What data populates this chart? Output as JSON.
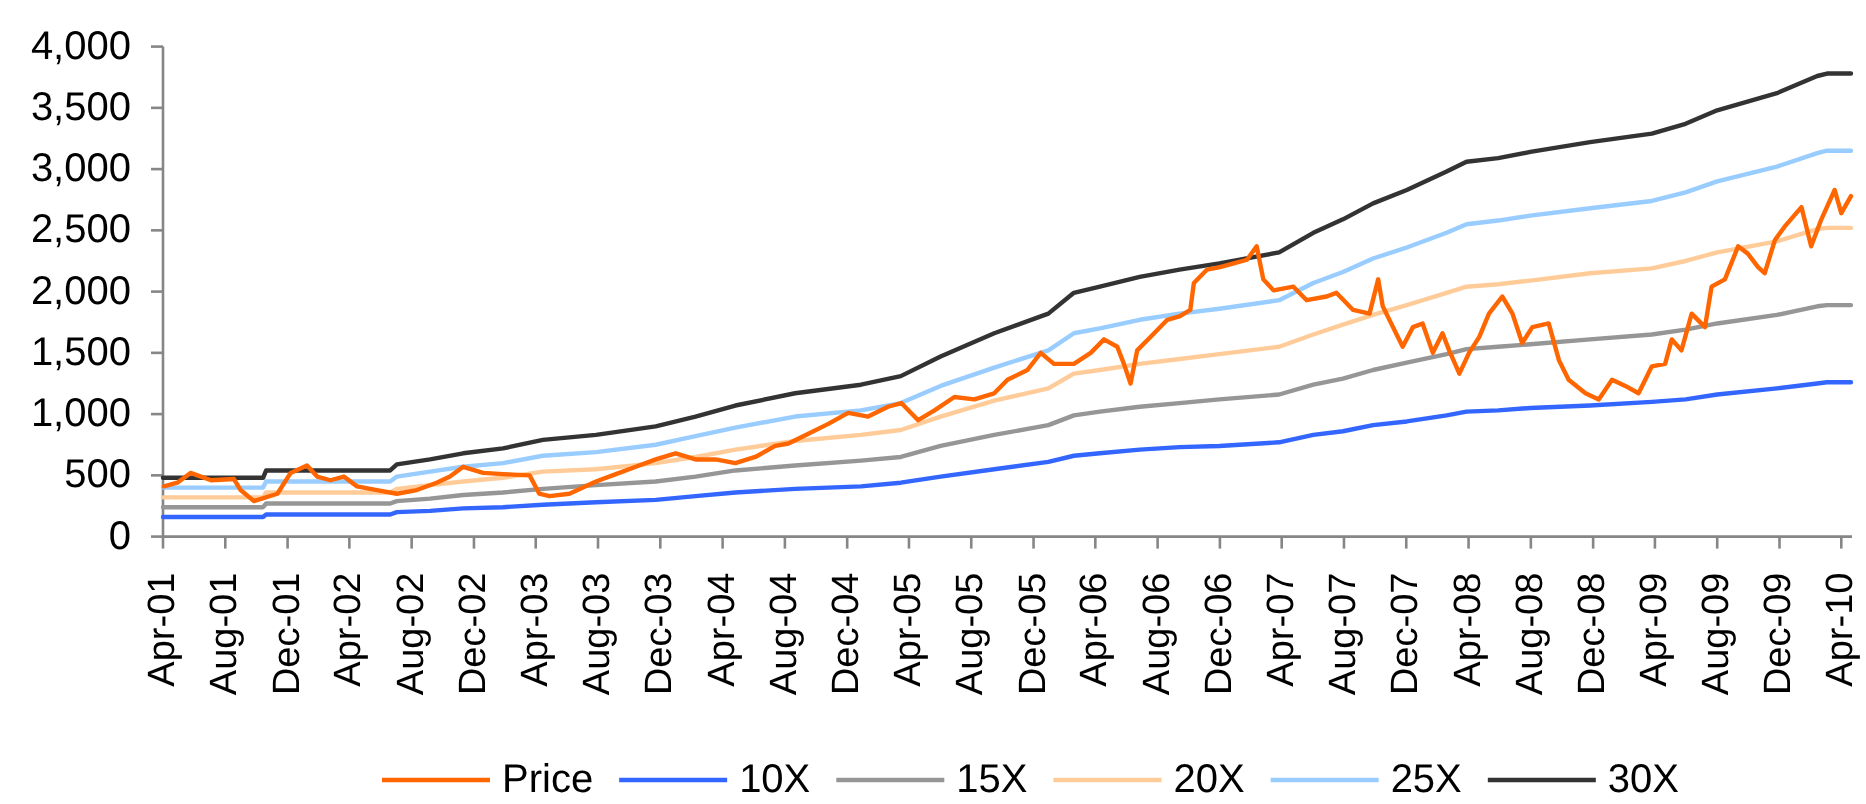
{
  "chart_data": {
    "type": "line",
    "xlim": [
      "2001-04-01",
      "2010-04-22"
    ],
    "ylim": [
      0,
      4000
    ],
    "xticks": [
      {
        "value": "2001-04-01",
        "label": "Apr-01"
      },
      {
        "value": "2001-08-01",
        "label": "Aug-01"
      },
      {
        "value": "2001-12-01",
        "label": "Dec-01"
      },
      {
        "value": "2002-04-01",
        "label": "Apr-02"
      },
      {
        "value": "2002-08-01",
        "label": "Aug-02"
      },
      {
        "value": "2002-12-01",
        "label": "Dec-02"
      },
      {
        "value": "2003-04-01",
        "label": "Apr-03"
      },
      {
        "value": "2003-08-01",
        "label": "Aug-03"
      },
      {
        "value": "2003-12-01",
        "label": "Dec-03"
      },
      {
        "value": "2004-04-01",
        "label": "Apr-04"
      },
      {
        "value": "2004-08-01",
        "label": "Aug-04"
      },
      {
        "value": "2004-12-01",
        "label": "Dec-04"
      },
      {
        "value": "2005-04-01",
        "label": "Apr-05"
      },
      {
        "value": "2005-08-01",
        "label": "Aug-05"
      },
      {
        "value": "2005-12-01",
        "label": "Dec-05"
      },
      {
        "value": "2006-04-01",
        "label": "Apr-06"
      },
      {
        "value": "2006-08-01",
        "label": "Aug-06"
      },
      {
        "value": "2006-12-01",
        "label": "Dec-06"
      },
      {
        "value": "2007-04-01",
        "label": "Apr-07"
      },
      {
        "value": "2007-08-01",
        "label": "Aug-07"
      },
      {
        "value": "2007-12-01",
        "label": "Dec-07"
      },
      {
        "value": "2008-04-01",
        "label": "Apr-08"
      },
      {
        "value": "2008-08-01",
        "label": "Aug-08"
      },
      {
        "value": "2008-12-01",
        "label": "Dec-08"
      },
      {
        "value": "2009-04-01",
        "label": "Apr-09"
      },
      {
        "value": "2009-08-01",
        "label": "Aug-09"
      },
      {
        "value": "2009-12-01",
        "label": "Dec-09"
      },
      {
        "value": "2010-04-01",
        "label": "Apr-10"
      }
    ],
    "yticks": [
      0,
      500,
      {
        "value": 1000,
        "label": "1,000"
      },
      {
        "value": 1500,
        "label": "1,500"
      },
      {
        "value": 2000,
        "label": "2,000"
      },
      {
        "value": 2500,
        "label": "2,500"
      },
      {
        "value": 3000,
        "label": "3,000"
      },
      {
        "value": 3500,
        "label": "3,500"
      },
      {
        "value": 4000,
        "label": "4,000"
      }
    ],
    "legend": "bottom",
    "series": [
      {
        "name": "Price",
        "color": "#ff6600",
        "x": [
          "2001-04-03",
          "2001-04-29",
          "2001-05-25",
          "2001-07-04",
          "2001-08-18",
          "2001-08-31",
          "2001-09-26",
          "2001-11-11",
          "2001-12-07",
          "2002-01-08",
          "2002-01-28",
          "2002-02-23",
          "2002-03-21",
          "2002-04-16",
          "2002-05-25",
          "2002-07-03",
          "2002-08-11",
          "2002-09-19",
          "2002-10-15",
          "2002-11-10",
          "2002-12-19",
          "2003-01-27",
          "2003-03-20",
          "2003-04-08",
          "2003-04-28",
          "2003-06-06",
          "2003-07-28",
          "2003-09-05",
          "2003-10-14",
          "2003-11-22",
          "2003-12-31",
          "2004-02-08",
          "2004-03-18",
          "2004-04-26",
          "2004-06-04",
          "2004-07-13",
          "2004-08-08",
          "2004-09-16",
          "2004-10-25",
          "2004-12-03",
          "2005-01-11",
          "2005-02-19",
          "2005-03-17",
          "2005-04-19",
          "2005-05-21",
          "2005-06-29",
          "2005-08-07",
          "2005-09-15",
          "2005-10-11",
          "2005-11-19",
          "2005-12-15",
          "2006-01-10",
          "2006-02-18",
          "2006-03-23",
          "2006-04-18",
          "2006-05-14",
          "2006-05-27",
          "2006-06-09",
          "2006-06-22",
          "2006-07-18",
          "2006-08-20",
          "2006-09-14",
          "2006-10-04",
          "2006-10-11",
          "2006-11-06",
          "2006-12-01",
          "2006-12-28",
          "2007-01-23",
          "2007-02-11",
          "2007-02-24",
          "2007-03-16",
          "2007-04-24",
          "2007-05-20",
          "2007-06-28",
          "2007-07-17",
          "2007-08-19",
          "2007-09-20",
          "2007-10-07",
          "2007-10-16",
          "2007-11-05",
          "2007-11-24",
          "2007-12-14",
          "2008-01-02",
          "2008-01-22",
          "2008-02-10",
          "2008-02-23",
          "2008-03-14",
          "2008-04-02",
          "2008-04-22",
          "2008-05-11",
          "2008-06-06",
          "2008-06-26",
          "2008-07-15",
          "2008-08-04",
          "2008-09-05",
          "2008-09-25",
          "2008-10-14",
          "2008-11-16",
          "2008-12-12",
          "2009-01-07",
          "2009-02-02",
          "2009-02-28",
          "2009-03-26",
          "2009-04-21",
          "2009-05-04",
          "2009-05-23",
          "2009-06-12",
          "2009-07-08",
          "2009-07-21",
          "2009-08-16",
          "2009-09-11",
          "2009-09-30",
          "2009-10-20",
          "2009-11-02",
          "2009-11-22",
          "2009-12-11",
          "2010-01-13",
          "2010-02-01",
          "2010-02-21",
          "2010-03-19",
          "2010-04-01",
          "2010-04-20"
        ],
        "values": [
          410,
          440,
          520,
          460,
          470,
          380,
          290,
          350,
          520,
          580,
          490,
          460,
          490,
          410,
          380,
          350,
          380,
          440,
          490,
          570,
          520,
          510,
          500,
          350,
          330,
          350,
          450,
          510,
          570,
          630,
          680,
          630,
          630,
          600,
          650,
          740,
          760,
          840,
          920,
          1010,
          980,
          1060,
          1090,
          950,
          1030,
          1140,
          1120,
          1170,
          1280,
          1360,
          1500,
          1410,
          1410,
          1500,
          1610,
          1550,
          1410,
          1250,
          1520,
          1630,
          1770,
          1800,
          1850,
          2070,
          2180,
          2200,
          2230,
          2260,
          2370,
          2100,
          2010,
          2040,
          1930,
          1960,
          1990,
          1850,
          1820,
          2100,
          1880,
          1710,
          1550,
          1710,
          1740,
          1500,
          1660,
          1520,
          1330,
          1500,
          1630,
          1820,
          1960,
          1820,
          1580,
          1710,
          1740,
          1440,
          1280,
          1170,
          1120,
          1280,
          1230,
          1170,
          1390,
          1410,
          1610,
          1520,
          1820,
          1710,
          2040,
          2100,
          2370,
          2310,
          2200,
          2150,
          2420,
          2530,
          2690,
          2370,
          2590,
          2830,
          2640,
          2780
        ]
      },
      {
        "name": "10X",
        "color": "#3366ff",
        "x": [
          "2001-04-01",
          "2001-10-14",
          "2001-10-20",
          "2002-06-20",
          "2002-07-03",
          "2002-09-06",
          "2002-11-10",
          "2003-01-27",
          "2003-04-15",
          "2003-07-28",
          "2003-11-22",
          "2004-02-08",
          "2004-04-26",
          "2004-08-21",
          "2004-12-28",
          "2005-03-16",
          "2005-06-02",
          "2005-09-15",
          "2005-12-30",
          "2006-02-18",
          "2006-04-10",
          "2006-06-27",
          "2006-09-13",
          "2006-11-30",
          "2007-03-27",
          "2007-06-02",
          "2007-07-30",
          "2007-09-27",
          "2007-12-02",
          "2008-02-18",
          "2008-03-28",
          "2008-05-29",
          "2008-07-31",
          "2008-11-25",
          "2009-03-26",
          "2009-05-31",
          "2009-08-01",
          "2009-11-26",
          "2010-02-13",
          "2010-03-04",
          "2010-04-20"
        ],
        "values": [
          160,
          160,
          180,
          180,
          200,
          210,
          230,
          240,
          260,
          280,
          300,
          330,
          360,
          390,
          410,
          440,
          490,
          550,
          610,
          660,
          680,
          710,
          730,
          740,
          770,
          830,
          860,
          910,
          940,
          990,
          1020,
          1030,
          1050,
          1070,
          1100,
          1120,
          1160,
          1210,
          1250,
          1260,
          1260
        ]
      },
      {
        "name": "15X",
        "color": "#969696",
        "x": [
          "2001-04-01",
          "2001-10-14",
          "2001-10-20",
          "2002-06-20",
          "2002-07-03",
          "2002-09-06",
          "2002-11-10",
          "2003-01-27",
          "2003-04-15",
          "2003-07-28",
          "2003-11-22",
          "2004-02-08",
          "2004-04-26",
          "2004-08-21",
          "2004-12-28",
          "2005-03-16",
          "2005-06-02",
          "2005-09-15",
          "2005-12-30",
          "2006-02-18",
          "2006-04-10",
          "2006-06-27",
          "2006-09-13",
          "2006-11-30",
          "2007-03-27",
          "2007-06-02",
          "2007-07-30",
          "2007-09-27",
          "2007-12-02",
          "2008-02-18",
          "2008-03-28",
          "2008-05-29",
          "2008-07-31",
          "2008-11-25",
          "2009-03-26",
          "2009-05-31",
          "2009-08-01",
          "2009-11-26",
          "2010-02-13",
          "2010-03-04",
          "2010-04-20"
        ],
        "values": [
          240,
          240,
          270,
          270,
          290,
          310,
          340,
          360,
          390,
          420,
          450,
          490,
          540,
          580,
          620,
          650,
          740,
          830,
          910,
          990,
          1020,
          1060,
          1090,
          1120,
          1160,
          1240,
          1290,
          1360,
          1420,
          1490,
          1530,
          1550,
          1570,
          1610,
          1650,
          1690,
          1740,
          1810,
          1880,
          1890,
          1890
        ]
      },
      {
        "name": "20X",
        "color": "#ffcc99",
        "x": [
          "2001-04-01",
          "2001-10-14",
          "2001-10-20",
          "2002-06-20",
          "2002-07-03",
          "2002-09-06",
          "2002-11-10",
          "2003-01-27",
          "2003-04-15",
          "2003-07-28",
          "2003-11-22",
          "2004-02-08",
          "2004-04-26",
          "2004-08-21",
          "2004-12-28",
          "2005-03-16",
          "2005-06-02",
          "2005-09-15",
          "2005-12-30",
          "2006-02-18",
          "2006-04-10",
          "2006-06-27",
          "2006-09-13",
          "2006-11-30",
          "2007-03-27",
          "2007-06-02",
          "2007-07-30",
          "2007-09-27",
          "2007-12-02",
          "2008-02-18",
          "2008-03-28",
          "2008-05-29",
          "2008-07-31",
          "2008-11-25",
          "2009-03-26",
          "2009-05-31",
          "2009-08-01",
          "2009-11-26",
          "2010-02-13",
          "2010-03-04",
          "2010-04-20"
        ],
        "values": [
          320,
          320,
          360,
          360,
          390,
          420,
          450,
          480,
          530,
          550,
          600,
          650,
          710,
          780,
          830,
          870,
          980,
          1110,
          1210,
          1330,
          1360,
          1410,
          1450,
          1490,
          1550,
          1650,
          1730,
          1810,
          1890,
          1990,
          2040,
          2060,
          2090,
          2150,
          2190,
          2250,
          2320,
          2410,
          2510,
          2520,
          2520
        ]
      },
      {
        "name": "25X",
        "color": "#99ccff",
        "x": [
          "2001-04-01",
          "2001-10-14",
          "2001-10-20",
          "2002-06-20",
          "2002-07-03",
          "2002-09-06",
          "2002-11-10",
          "2003-01-27",
          "2003-04-15",
          "2003-07-28",
          "2003-11-22",
          "2004-02-08",
          "2004-04-26",
          "2004-08-21",
          "2004-12-28",
          "2005-03-16",
          "2005-06-02",
          "2005-09-15",
          "2005-12-30",
          "2006-02-18",
          "2006-04-10",
          "2006-06-27",
          "2006-09-13",
          "2006-11-30",
          "2007-03-27",
          "2007-06-02",
          "2007-07-30",
          "2007-09-27",
          "2007-12-02",
          "2008-02-18",
          "2008-03-28",
          "2008-05-29",
          "2008-07-31",
          "2008-11-25",
          "2009-03-26",
          "2009-05-31",
          "2009-08-01",
          "2009-11-26",
          "2010-02-13",
          "2010-03-04",
          "2010-04-20"
        ],
        "values": [
          400,
          400,
          450,
          450,
          490,
          530,
          570,
          600,
          660,
          690,
          750,
          820,
          890,
          980,
          1030,
          1090,
          1230,
          1380,
          1520,
          1660,
          1700,
          1770,
          1820,
          1860,
          1930,
          2070,
          2160,
          2270,
          2360,
          2480,
          2550,
          2580,
          2620,
          2680,
          2740,
          2810,
          2900,
          3020,
          3130,
          3150,
          3150
        ]
      },
      {
        "name": "30X",
        "color": "#333333",
        "x": [
          "2001-04-01",
          "2001-10-14",
          "2001-10-20",
          "2002-06-20",
          "2002-07-03",
          "2002-09-06",
          "2002-11-10",
          "2003-01-27",
          "2003-04-15",
          "2003-07-28",
          "2003-11-22",
          "2004-02-08",
          "2004-04-26",
          "2004-08-21",
          "2004-12-28",
          "2005-03-16",
          "2005-06-02",
          "2005-09-15",
          "2005-12-30",
          "2006-02-18",
          "2006-04-10",
          "2006-06-27",
          "2006-09-13",
          "2006-11-30",
          "2007-03-27",
          "2007-06-02",
          "2007-07-30",
          "2007-09-27",
          "2007-12-02",
          "2008-02-18",
          "2008-03-28",
          "2008-05-29",
          "2008-07-31",
          "2008-11-25",
          "2009-03-26",
          "2009-05-31",
          "2009-08-01",
          "2009-11-26",
          "2010-02-13",
          "2010-03-04",
          "2010-04-20"
        ],
        "values": [
          480,
          480,
          540,
          540,
          590,
          630,
          680,
          720,
          790,
          830,
          900,
          980,
          1070,
          1170,
          1240,
          1310,
          1470,
          1660,
          1820,
          1990,
          2040,
          2120,
          2180,
          2230,
          2320,
          2480,
          2590,
          2720,
          2830,
          2980,
          3060,
          3090,
          3140,
          3220,
          3290,
          3370,
          3480,
          3620,
          3760,
          3780,
          3780
        ]
      }
    ]
  }
}
